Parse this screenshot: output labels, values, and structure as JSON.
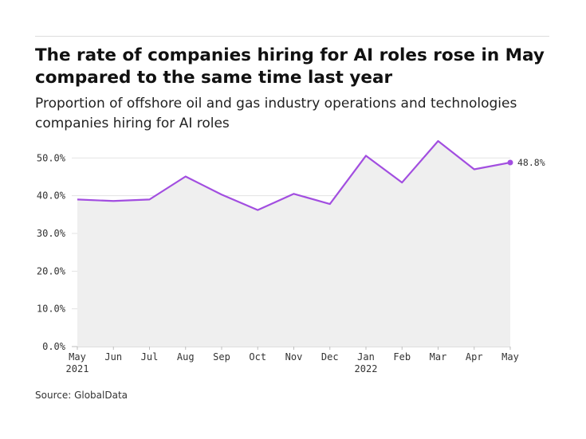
{
  "header": {
    "title": "The rate of companies hiring for AI roles rose in May compared to the same time last year",
    "subtitle": "Proportion of offshore oil and gas industry operations and technologies companies hiring for AI roles"
  },
  "footer": {
    "source": "Source: GlobalData"
  },
  "colors": {
    "line": "#a24ee0",
    "area": "#efefef",
    "grid": "#e3e3e3",
    "text": "#333333"
  },
  "chart_data": {
    "type": "area",
    "title": "The rate of companies hiring for AI roles rose in May compared to the same time last year",
    "subtitle": "Proportion of offshore oil and gas industry operations and technologies companies hiring for AI roles",
    "xlabel": "",
    "ylabel": "",
    "categories": [
      "May",
      "Jun",
      "Jul",
      "Aug",
      "Sep",
      "Oct",
      "Nov",
      "Dec",
      "Jan",
      "Feb",
      "Mar",
      "Apr",
      "May"
    ],
    "year_labels": [
      "2021",
      "",
      "",
      "",
      "",
      "",
      "",
      "",
      "2022",
      "",
      "",
      "",
      ""
    ],
    "series": [
      {
        "values": [
          39.0,
          38.6,
          39.0,
          45.1,
          40.3,
          36.2,
          40.5,
          37.8,
          50.6,
          43.5,
          54.5,
          47.0,
          48.8
        ]
      }
    ],
    "yticks": [
      0,
      10,
      20,
      30,
      40,
      50
    ],
    "ytick_labels": [
      "0.0%",
      "10.0%",
      "20.0%",
      "30.0%",
      "40.0%",
      "50.0%"
    ],
    "ylim": [
      0,
      54.5
    ],
    "grid": true,
    "end_label": "48.8%"
  }
}
